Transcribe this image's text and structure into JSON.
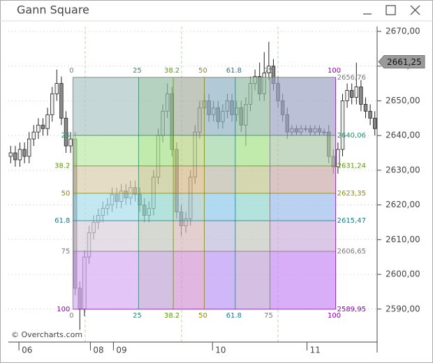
{
  "window": {
    "title": "Gann Square"
  },
  "chart_data": {
    "type": "candlestick",
    "open": [
      2634,
      2635,
      2633,
      2636,
      2634,
      2639,
      2641,
      2643,
      2642,
      2646,
      2652,
      2655,
      2645,
      2637,
      2639,
      2596,
      2590,
      2605,
      2612,
      2615,
      2617,
      2619,
      2620,
      2623,
      2621,
      2624,
      2622,
      2625,
      2623,
      2620,
      2617,
      2619,
      2628,
      2640,
      2647,
      2652,
      2636,
      2618,
      2614,
      2616,
      2628,
      2641,
      2648,
      2650,
      2646,
      2648,
      2644,
      2647,
      2650,
      2646,
      2648,
      2643,
      2649,
      2655,
      2657,
      2652,
      2658,
      2660,
      2655,
      2650,
      2646,
      2641,
      2642,
      2641,
      2642,
      2642,
      2641,
      2642,
      2641,
      2641,
      2634,
      2631,
      2636,
      2650,
      2653,
      2651,
      2654,
      2649,
      2647,
      2645
    ],
    "high": [
      2637,
      2637,
      2638,
      2638,
      2641,
      2643,
      2645,
      2645,
      2648,
      2654,
      2659,
      2657,
      2647,
      2641,
      2641,
      2598,
      2607,
      2614,
      2617,
      2619,
      2621,
      2622,
      2625,
      2625,
      2626,
      2626,
      2627,
      2627,
      2625,
      2622,
      2621,
      2630,
      2642,
      2649,
      2655,
      2654,
      2638,
      2620,
      2618,
      2630,
      2643,
      2650,
      2652,
      2652,
      2650,
      2650,
      2649,
      2652,
      2652,
      2650,
      2650,
      2651,
      2657,
      2659,
      2661,
      2664,
      2667,
      2662,
      2657,
      2652,
      2648,
      2643,
      2643,
      2643,
      2643,
      2643,
      2643,
      2643,
      2642,
      2643,
      2636,
      2638,
      2652,
      2655,
      2655,
      2661,
      2656,
      2651,
      2649,
      2647
    ],
    "low": [
      2632,
      2631,
      2631,
      2632,
      2632,
      2637,
      2639,
      2640,
      2640,
      2644,
      2650,
      2643,
      2635,
      2635,
      2594,
      2584,
      2588,
      2603,
      2610,
      2613,
      2615,
      2617,
      2618,
      2619,
      2619,
      2620,
      2620,
      2621,
      2618,
      2615,
      2615,
      2617,
      2626,
      2638,
      2645,
      2634,
      2616,
      2611,
      2612,
      2614,
      2626,
      2639,
      2646,
      2644,
      2644,
      2642,
      2642,
      2645,
      2644,
      2644,
      2641,
      2637,
      2647,
      2653,
      2650,
      2650,
      2656,
      2653,
      2648,
      2644,
      2639,
      2640,
      2640,
      2640,
      2641,
      2640,
      2640,
      2640,
      2640,
      2632,
      2629,
      2629,
      2634,
      2648,
      2649,
      2649,
      2647,
      2645,
      2643,
      2640
    ],
    "close": [
      2635,
      2633,
      2636,
      2634,
      2639,
      2641,
      2643,
      2642,
      2646,
      2652,
      2655,
      2645,
      2637,
      2639,
      2596,
      2590,
      2605,
      2612,
      2615,
      2617,
      2619,
      2620,
      2623,
      2621,
      2624,
      2622,
      2625,
      2623,
      2620,
      2617,
      2619,
      2628,
      2640,
      2647,
      2652,
      2636,
      2618,
      2614,
      2616,
      2628,
      2641,
      2648,
      2650,
      2646,
      2648,
      2644,
      2647,
      2650,
      2646,
      2648,
      2643,
      2649,
      2655,
      2657,
      2652,
      2658,
      2660,
      2655,
      2650,
      2646,
      2641,
      2642,
      2641,
      2642,
      2642,
      2641,
      2642,
      2641,
      2641,
      2634,
      2631,
      2636,
      2650,
      2653,
      2651,
      2654,
      2649,
      2647,
      2645,
      2642
    ],
    "xlim": [
      -0.5,
      79.5
    ],
    "xticks": [
      {
        "value": 3,
        "label": "06"
      },
      {
        "value": 18.5,
        "label": "08"
      },
      {
        "value": 23.5,
        "label": "09"
      },
      {
        "value": 45,
        "label": "10"
      },
      {
        "value": 65.5,
        "label": "11"
      }
    ],
    "ylim": [
      2580.5,
      2671.4
    ],
    "yticks": [
      {
        "value": 2590,
        "label": "2590,00"
      },
      {
        "value": 2600,
        "label": "2600,00"
      },
      {
        "value": 2610,
        "label": "2610,00"
      },
      {
        "value": 2620,
        "label": "2620,00"
      },
      {
        "value": 2630,
        "label": "2630,00"
      },
      {
        "value": 2640,
        "label": "2640,00"
      },
      {
        "value": 2650,
        "label": "2650,00"
      },
      {
        "value": 2660,
        "label": "2660,00"
      },
      {
        "value": 2670,
        "label": "2670,00"
      }
    ],
    "grid": true,
    "up_color": "#eeeeee",
    "down_color": "#8a8a8a",
    "last_price": {
      "value": 2661.25,
      "label": "2661,25"
    },
    "gann_square": {
      "time_range": [
        13.5,
        70.5
      ],
      "levels": [
        0,
        25,
        38.2,
        50,
        61.8,
        75,
        100
      ],
      "prices": [
        {
          "value": 2656.76,
          "label": "2656,76"
        },
        {
          "value": 2640.06,
          "label": "2640,06"
        },
        {
          "value": 2631.24,
          "label": "2631,24"
        },
        {
          "value": 2623.35,
          "label": "2623,35"
        },
        {
          "value": 2615.47,
          "label": "2615,47"
        },
        {
          "value": 2606.65,
          "label": "2606,65"
        },
        {
          "value": 2589.95,
          "label": "2589,95"
        }
      ],
      "level_colors": [
        "#777777",
        "#2a8a6a",
        "#5a9a00",
        "#8a8a00",
        "#1a7a8a",
        "#777777",
        "#8a00b0"
      ],
      "band_colors": [
        "#8fb3b0",
        "#a6e28a",
        "#cbbd8e",
        "#8ed3e6",
        "#cfc0d0",
        "#c98ff2"
      ],
      "column_colors": [
        "#ffffff",
        "#9be27a",
        "#f0a070",
        "#8aa8ff",
        "#9be27a",
        "#c070ff"
      ]
    },
    "credit": "© Overcharts.com"
  }
}
